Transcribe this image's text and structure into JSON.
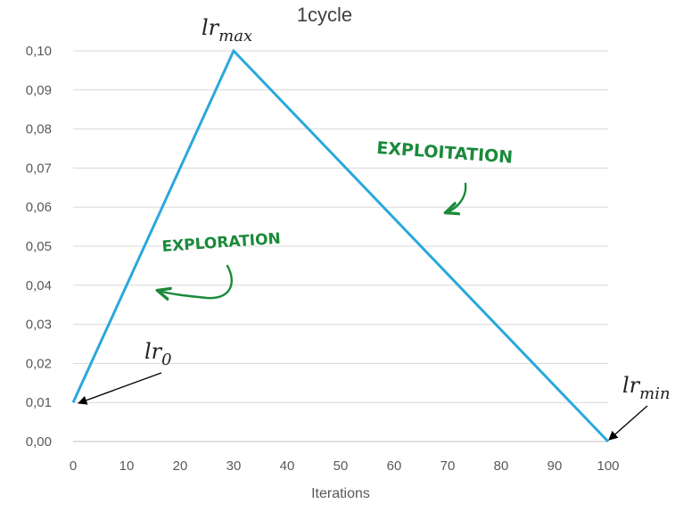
{
  "chart_data": {
    "type": "line",
    "title": "1cycle",
    "xlabel": "Iterations",
    "ylabel": "",
    "xlim": [
      0,
      100
    ],
    "ylim": [
      0,
      0.1
    ],
    "x_ticks": [
      "0",
      "10",
      "20",
      "30",
      "40",
      "50",
      "60",
      "70",
      "80",
      "90",
      "100"
    ],
    "y_ticks": [
      "0,00",
      "0,01",
      "0,02",
      "0,03",
      "0,04",
      "0,05",
      "0,06",
      "0,07",
      "0,08",
      "0,09",
      "0,10"
    ],
    "grid": true,
    "series": [
      {
        "x": [
          0,
          30,
          100
        ],
        "y": [
          0.01,
          0.1,
          0.0
        ],
        "color": "#2aa8dc"
      }
    ],
    "annotations": {
      "lr0": {
        "base": "lr",
        "sub": "0"
      },
      "lrmax": {
        "base": "lr",
        "sub": "max"
      },
      "lrmin": {
        "base": "lr",
        "sub": "min"
      },
      "exploration": "EXPLORATION",
      "exploitation": "EXPLOITATION"
    },
    "colors": {
      "line": "#2aa8dc",
      "grid": "#d9d9d9",
      "handwriting": "#1a8a3a",
      "arrow": "#000000"
    }
  }
}
